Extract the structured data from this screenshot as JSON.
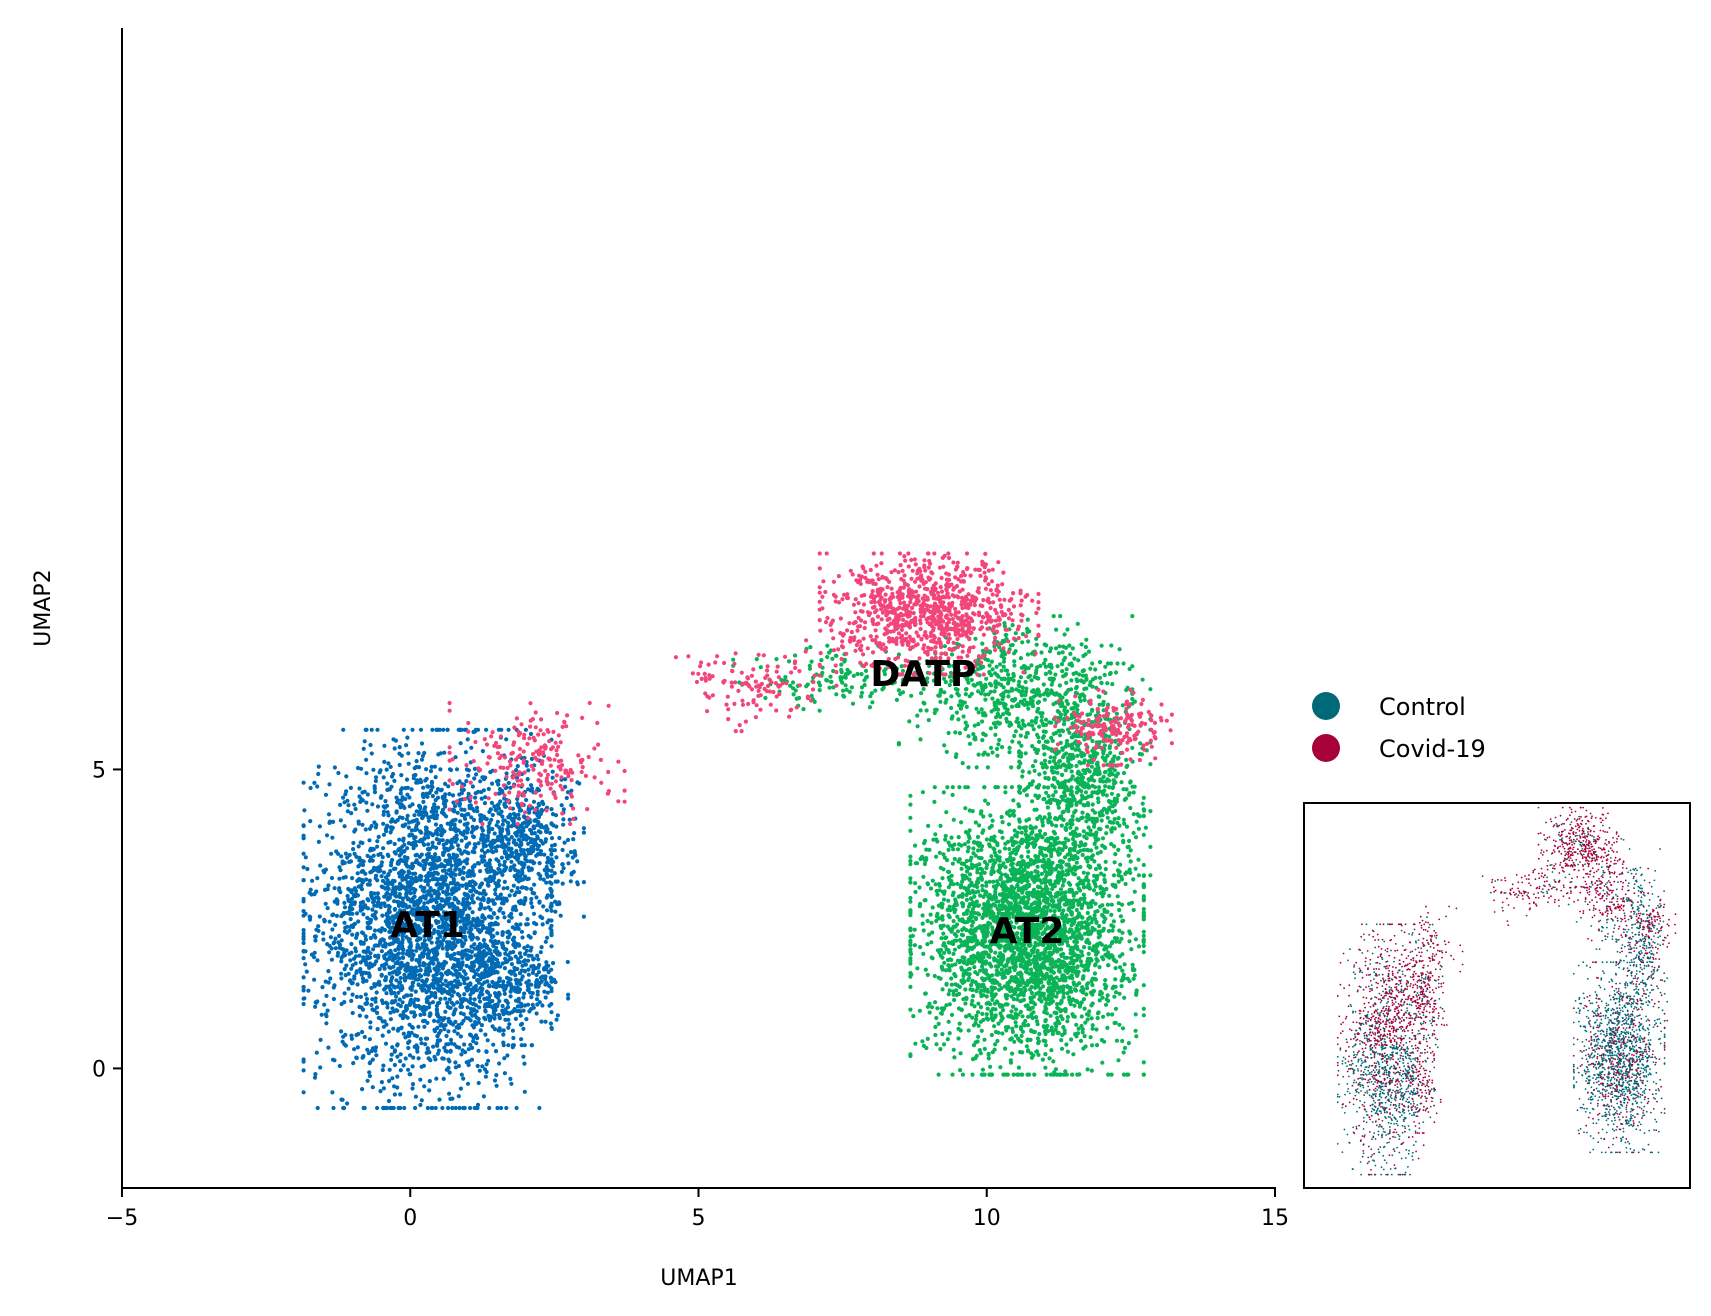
{
  "chart_data": [
    {
      "type": "scatter",
      "xlabel": "UMAP1",
      "ylabel": "UMAP2",
      "xlim": [
        -5,
        15
      ],
      "ylim": [
        -2,
        17.4
      ],
      "xticks": [
        -5,
        0,
        5,
        10,
        15
      ],
      "xtick_labels": [
        "−5",
        "0",
        "5",
        "10",
        "15"
      ],
      "yticks": [
        0,
        5
      ],
      "ytick_labels": [
        "0",
        "5"
      ],
      "grid": false,
      "cluster_labels": [
        {
          "text": "AT1",
          "x": 0.3,
          "y": 2.4
        },
        {
          "text": "AT2",
          "x": 10.7,
          "y": 2.3
        },
        {
          "text": "DATP",
          "x": 8.9,
          "y": 6.6
        }
      ],
      "series": [
        {
          "name": "AT1",
          "color": "#006BB4",
          "regions": [
            [
              0.3,
              2.5,
              1.7,
              2.5,
              3000
            ],
            [
              1.6,
              1.4,
              0.9,
              0.8,
              350
            ],
            [
              2.0,
              3.8,
              0.8,
              1.1,
              450
            ]
          ]
        },
        {
          "name": "AT2",
          "color": "#0BB357",
          "regions": [
            [
              10.7,
              2.3,
              1.6,
              1.9,
              3000
            ],
            [
              11.7,
              5.0,
              0.9,
              1.4,
              650
            ],
            [
              10.5,
              6.3,
              1.6,
              1.0,
              600
            ],
            [
              7.5,
              6.5,
              1.5,
              0.45,
              140
            ]
          ]
        },
        {
          "name": "DATP",
          "color": "#F2467A",
          "regions": [
            [
              9.0,
              7.6,
              1.5,
              0.8,
              900
            ],
            [
              12.2,
              5.7,
              0.8,
              0.5,
              180
            ],
            [
              2.2,
              5.1,
              1.2,
              0.8,
              220
            ],
            [
              6.0,
              6.4,
              1.1,
              0.6,
              120
            ]
          ]
        }
      ],
      "legend": []
    },
    {
      "type": "scatter",
      "inset": true,
      "position": "bottom-right",
      "axes_visible": false,
      "series": [
        {
          "name": "Control",
          "color": "#006978"
        },
        {
          "name": "Covid-19",
          "color": "#A80038"
        }
      ],
      "legend": [
        "Control",
        "Covid-19"
      ],
      "legend_placement": "right, above inset"
    }
  ],
  "legend": {
    "items": [
      {
        "label": "Control",
        "color": "#006978"
      },
      {
        "label": "Covid-19",
        "color": "#A80038"
      }
    ]
  }
}
